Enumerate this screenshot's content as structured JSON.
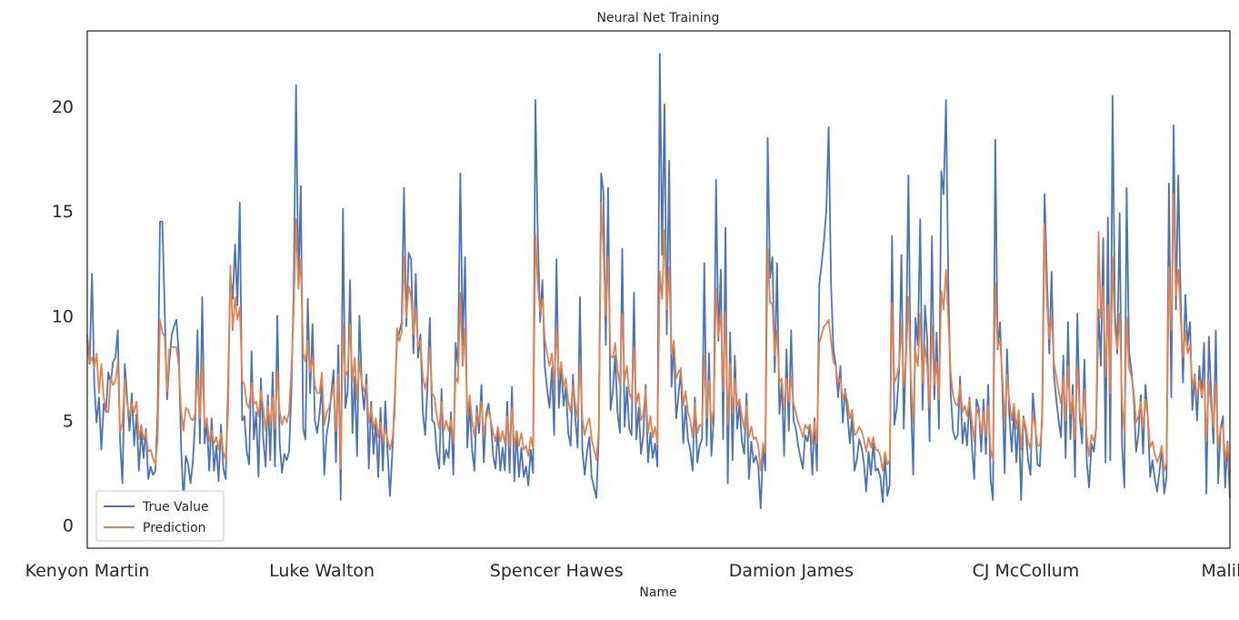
{
  "chart_data": {
    "type": "line",
    "title": "Neural Net Training",
    "xlabel": "Name",
    "ylabel": "",
    "ylim": [
      -1.1,
      23.6
    ],
    "yticks": [
      0,
      5,
      10,
      15,
      20
    ],
    "xticks": [
      {
        "label": "Kenyon Martin",
        "index": 0
      },
      {
        "label": "Luke Walton",
        "index": 100
      },
      {
        "label": "Spencer Hawes",
        "index": 200
      },
      {
        "label": "Damion James",
        "index": 300
      },
      {
        "label": "CJ McCollum",
        "index": 400
      },
      {
        "label": "Malik Beasley",
        "index": 500
      }
    ],
    "grid": false,
    "legend": "lower-left",
    "series": [
      {
        "name": "True Value",
        "color": "#4c72b0",
        "values": [
          8.8,
          7.7,
          12.0,
          6.7,
          4.9,
          6.1,
          3.6,
          5.8,
          5.4,
          7.3,
          6.8,
          7.8,
          8.0,
          9.3,
          4.0,
          2.0,
          7.7,
          6.1,
          4.5,
          6.3,
          3.8,
          5.3,
          2.6,
          4.5,
          3.2,
          4.6,
          2.2,
          2.8,
          2.4,
          2.6,
          5.4,
          14.5,
          14.5,
          10.2,
          6.0,
          7.8,
          9.1,
          9.5,
          9.8,
          8.2,
          3.8,
          1.1,
          3.3,
          2.9,
          2.0,
          3.0,
          5.0,
          9.3,
          3.9,
          10.9,
          3.9,
          4.9,
          2.6,
          5.1,
          2.6,
          3.8,
          2.1,
          4.8,
          2.7,
          2.2,
          6.7,
          12.0,
          10.8,
          13.4,
          10.5,
          15.4,
          5.0,
          5.2,
          3.5,
          2.9,
          8.3,
          4.1,
          5.4,
          2.3,
          7.0,
          4.1,
          2.8,
          6.2,
          3.1,
          7.3,
          2.8,
          10.0,
          3.9,
          2.5,
          3.4,
          3.1,
          3.5,
          6.5,
          11.3,
          21.0,
          11.3,
          16.2,
          4.6,
          4.1,
          10.8,
          6.3,
          9.6,
          5.0,
          4.4,
          5.3,
          6.7,
          2.4,
          4.3,
          5.0,
          6.3,
          7.4,
          3.0,
          8.6,
          1.2,
          15.1,
          5.6,
          6.4,
          11.7,
          4.4,
          7.1,
          3.3,
          10.0,
          6.7,
          5.5,
          7.2,
          2.7,
          5.9,
          3.4,
          5.0,
          2.3,
          5.6,
          2.6,
          5.9,
          3.5,
          1.4,
          3.4,
          5.9,
          8.8,
          9.2,
          9.7,
          16.1,
          9.5,
          13.0,
          12.7,
          8.2,
          12.0,
          8.0,
          9.1,
          5.4,
          4.3,
          6.6,
          9.9,
          5.0,
          4.9,
          3.4,
          2.7,
          6.5,
          2.9,
          3.6,
          3.2,
          5.4,
          2.4,
          8.7,
          7.6,
          16.8,
          8.6,
          12.8,
          3.7,
          5.8,
          3.6,
          2.6,
          5.7,
          4.4,
          6.7,
          3.0,
          5.3,
          5.8,
          4.9,
          3.3,
          2.7,
          4.5,
          2.6,
          3.7,
          2.6,
          5.9,
          2.5,
          6.6,
          2.1,
          4.4,
          2.3,
          3.7,
          2.3,
          2.8,
          1.9,
          3.6,
          2.5,
          20.3,
          13.9,
          9.7,
          11.7,
          7.6,
          6.5,
          5.6,
          7.5,
          4.3,
          12.7,
          5.6,
          7.7,
          5.7,
          6.6,
          4.4,
          3.8,
          7.2,
          5.1,
          3.7,
          10.9,
          3.6,
          2.4,
          3.5,
          4.2,
          2.3,
          1.8,
          1.3,
          4.3,
          16.8,
          15.9,
          8.6,
          16.1,
          5.5,
          6.4,
          8.1,
          5.4,
          4.4,
          13.2,
          4.7,
          6.6,
          4.6,
          4.3,
          11.1,
          4.1,
          5.6,
          3.4,
          4.3,
          6.7,
          3.0,
          4.4,
          3.2,
          3.9,
          2.8,
          22.5,
          12.9,
          20.1,
          9.1,
          17.4,
          6.6,
          8.7,
          5.1,
          6.2,
          7.4,
          3.9,
          5.7,
          4.1,
          3.6,
          2.6,
          6.1,
          3.0,
          3.8,
          4.1,
          12.5,
          3.8,
          8.2,
          3.3,
          5.1,
          16.5,
          8.8,
          12.2,
          4.1,
          14.2,
          2.0,
          9.2,
          3.1,
          8.1,
          4.6,
          5.8,
          4.0,
          3.4,
          6.3,
          2.2,
          4.0,
          3.0,
          3.3,
          2.8,
          0.8,
          3.7,
          2.6,
          18.5,
          11.8,
          12.8,
          7.3,
          12.5,
          5.3,
          6.8,
          3.3,
          8.4,
          4.5,
          9.3,
          5.0,
          4.6,
          3.8,
          3.2,
          2.7,
          4.3,
          4.0,
          4.8,
          2.4,
          5.1,
          2.6,
          11.5,
          12.5,
          13.6,
          15.0,
          19.0,
          11.5,
          8.4,
          7.7,
          6.1,
          7.6,
          4.9,
          6.5,
          5.3,
          3.9,
          5.2,
          2.6,
          3.1,
          4.1,
          3.7,
          3.0,
          1.6,
          3.5,
          2.4,
          3.9,
          2.6,
          2.7,
          2.3,
          1.1,
          3.3,
          1.4,
          1.9,
          13.8,
          4.8,
          5.6,
          7.4,
          12.9,
          4.6,
          8.6,
          16.7,
          6.1,
          2.4,
          9.9,
          8.6,
          14.6,
          5.5,
          10.5,
          8.9,
          4.0,
          13.8,
          6.0,
          9.2,
          4.6,
          16.9,
          15.8,
          20.3,
          11.4,
          6.3,
          4.5,
          4.1,
          4.3,
          7.1,
          3.9,
          4.9,
          3.8,
          6.1,
          3.8,
          2.2,
          6.0,
          5.6,
          3.5,
          6.0,
          3.4,
          6.7,
          2.2,
          1.2,
          18.4,
          8.4,
          9.7,
          6.6,
          2.5,
          8.4,
          5.2,
          3.5,
          5.5,
          3.0,
          5.2,
          1.2,
          5.2,
          4.5,
          3.1,
          2.4,
          6.3,
          4.9,
          2.9,
          2.8,
          5.4,
          15.8,
          11.9,
          8.2,
          12.1,
          7.2,
          6.0,
          5.0,
          4.2,
          8.1,
          3.2,
          9.7,
          4.1,
          6.7,
          2.3,
          10.1,
          5.2,
          3.9,
          7.9,
          3.0,
          1.8,
          3.9,
          3.5,
          4.7,
          10.3,
          7.6,
          13.7,
          3.0,
          14.7,
          3.1,
          20.5,
          10.2,
          8.2,
          14.9,
          3.8,
          1.8,
          16.1,
          8.3,
          7.4,
          6.1,
          3.5,
          4.3,
          6.2,
          3.4,
          6.7,
          5.2,
          2.3,
          3.1,
          2.2,
          1.6,
          2.6,
          3.7,
          1.5,
          2.3,
          16.3,
          6.1,
          19.1,
          10.3,
          16.7,
          10.8,
          6.8,
          11.0,
          8.6,
          9.7,
          5.5,
          7.2,
          5.0,
          7.6,
          6.1,
          8.7,
          1.5,
          9.0,
          6.2,
          3.9,
          9.3,
          2.0,
          4.6,
          5.2,
          1.8,
          4.0,
          1.3
        ],
        "_note": "x positions are uniform across the series index range"
      },
      {
        "name": "Prediction",
        "color": "#dd8452",
        "values": [
          9.1,
          7.8,
          8.0,
          7.5,
          8.2,
          6.3,
          7.7,
          6.1,
          5.5,
          5.4,
          7.0,
          6.7,
          6.9,
          7.8,
          4.4,
          4.9,
          7.0,
          5.8,
          5.2,
          5.8,
          5.4,
          5.9,
          4.1,
          4.8,
          4.1,
          4.4,
          3.5,
          3.6,
          3.2,
          2.9,
          4.1,
          9.8,
          9.2,
          9.0,
          6.4,
          8.4,
          8.5,
          8.5,
          8.5,
          7.6,
          5.5,
          4.5,
          5.6,
          5.5,
          5.1,
          5.0,
          5.3,
          7.2,
          5.1,
          7.8,
          4.7,
          5.1,
          4.0,
          4.5,
          3.9,
          4.2,
          3.6,
          4.4,
          3.5,
          3.1,
          5.4,
          12.4,
          9.3,
          10.9,
          9.8,
          10.4,
          6.9,
          6.7,
          5.8,
          5.6,
          6.8,
          5.8,
          5.9,
          5.2,
          6.4,
          5.6,
          4.5,
          5.7,
          4.8,
          6.1,
          4.6,
          7.3,
          5.4,
          4.8,
          5.2,
          4.9,
          5.4,
          7.5,
          10.2,
          14.6,
          11.3,
          12.7,
          8.2,
          7.8,
          8.8,
          7.3,
          8.0,
          6.7,
          6.3,
          6.3,
          7.3,
          4.8,
          5.4,
          5.6,
          6.1,
          6.7,
          4.5,
          7.2,
          2.7,
          9.6,
          7.1,
          7.4,
          9.6,
          6.8,
          8.0,
          6.0,
          7.8,
          6.8,
          6.4,
          6.7,
          4.9,
          5.6,
          4.6,
          5.1,
          4.2,
          4.9,
          4.0,
          4.6,
          4.1,
          3.6,
          4.1,
          5.2,
          9.4,
          8.8,
          9.2,
          12.8,
          9.9,
          11.4,
          10.9,
          9.1,
          10.4,
          8.5,
          8.8,
          7.1,
          6.5,
          7.1,
          8.5,
          6.3,
          6.1,
          5.2,
          4.6,
          5.9,
          4.5,
          5.0,
          4.5,
          5.0,
          3.9,
          7.1,
          6.8,
          11.1,
          7.6,
          9.4,
          5.3,
          6.2,
          5.0,
          4.2,
          5.4,
          4.9,
          5.9,
          4.3,
          5.1,
          5.5,
          5.0,
          4.4,
          4.0,
          4.7,
          4.0,
          4.5,
          3.9,
          5.2,
          3.7,
          5.6,
          3.7,
          4.5,
          3.8,
          4.4,
          3.6,
          3.8,
          3.3,
          4.2,
          3.7,
          13.9,
          11.5,
          10.2,
          10.8,
          8.9,
          8.2,
          7.6,
          8.2,
          6.7,
          9.4,
          7.0,
          7.8,
          6.6,
          7.0,
          5.9,
          5.4,
          6.7,
          5.8,
          5.1,
          7.8,
          5.1,
          4.3,
          4.8,
          5.1,
          4.1,
          3.6,
          3.1,
          4.5,
          15.4,
          13.2,
          10.0,
          12.8,
          8.1,
          8.0,
          8.7,
          7.4,
          6.7,
          10.1,
          6.9,
          7.6,
          6.3,
          6.0,
          8.5,
          5.8,
          6.3,
          5.0,
          5.3,
          6.5,
          4.4,
          5.2,
          4.2,
          4.7,
          3.9,
          12.1,
          10.8,
          14.1,
          10.3,
          12.3,
          8.2,
          8.8,
          7.0,
          7.3,
          7.5,
          5.7,
          6.4,
          5.4,
          5.0,
          4.2,
          5.8,
          4.4,
          4.8,
          4.7,
          8.1,
          5.1,
          6.9,
          4.8,
          5.6,
          11.3,
          9.0,
          10.1,
          6.4,
          10.2,
          4.8,
          7.7,
          5.3,
          7.0,
          5.7,
          6.0,
          5.2,
          4.6,
          5.7,
          4.2,
          4.7,
          4.1,
          4.2,
          3.8,
          2.6,
          3.9,
          3.5,
          13.2,
          10.6,
          10.6,
          8.1,
          9.3,
          6.8,
          7.0,
          5.5,
          7.0,
          5.9,
          7.1,
          5.8,
          5.4,
          4.9,
          4.6,
          4.2,
          4.8,
          4.6,
          4.8,
          3.9,
          4.9,
          3.9,
          8.7,
          9.1,
          9.5,
          9.6,
          9.8,
          8.8,
          7.8,
          7.6,
          6.8,
          7.0,
          6.0,
          6.4,
          5.9,
          5.1,
          5.5,
          4.3,
          4.4,
          4.7,
          4.5,
          4.1,
          3.5,
          4.2,
          3.7,
          4.2,
          3.6,
          3.6,
          3.3,
          2.6,
          3.5,
          2.9,
          3.1,
          10.6,
          6.8,
          7.1,
          7.6,
          9.6,
          6.6,
          8.0,
          10.9,
          7.0,
          4.9,
          8.3,
          7.6,
          10.1,
          6.8,
          8.6,
          7.6,
          5.6,
          9.5,
          6.7,
          7.8,
          6.0,
          11.2,
          10.3,
          12.2,
          9.7,
          7.3,
          6.2,
          5.8,
          5.7,
          6.7,
          5.4,
          5.7,
          5.2,
          6.0,
          5.0,
          4.0,
          5.6,
          5.3,
          4.4,
          5.4,
          4.2,
          5.7,
          3.6,
          3.1,
          11.6,
          8.5,
          8.8,
          7.2,
          4.9,
          7.2,
          5.9,
          5.0,
          5.8,
          4.6,
          5.5,
          3.6,
          5.1,
          4.7,
          4.0,
          3.6,
          5.3,
          4.7,
          3.8,
          3.8,
          4.8,
          14.4,
          10.6,
          8.9,
          10.0,
          7.8,
          7.1,
          6.4,
          5.8,
          7.1,
          5.0,
          7.6,
          5.3,
          6.2,
          4.1,
          7.6,
          5.4,
          4.7,
          6.5,
          4.2,
          3.3,
          4.3,
          4.0,
          4.6,
          14.0,
          9.9,
          11.4,
          7.1,
          10.5,
          6.3,
          12.8,
          9.4,
          8.4,
          10.1,
          5.9,
          4.4,
          9.9,
          7.5,
          7.1,
          6.4,
          4.9,
          5.2,
          5.9,
          4.6,
          6.0,
          5.2,
          3.7,
          4.0,
          3.4,
          3.0,
          3.3,
          3.8,
          2.6,
          3.0,
          12.3,
          9.3,
          15.8,
          11.0,
          12.2,
          9.9,
          8.0,
          9.3,
          8.2,
          8.6,
          6.6,
          7.1,
          6.1,
          6.9,
          6.2,
          7.0,
          4.0,
          6.9,
          5.6,
          4.7,
          6.8,
          3.7,
          4.6,
          4.8,
          3.1,
          3.9,
          2.5
        ]
      }
    ]
  }
}
